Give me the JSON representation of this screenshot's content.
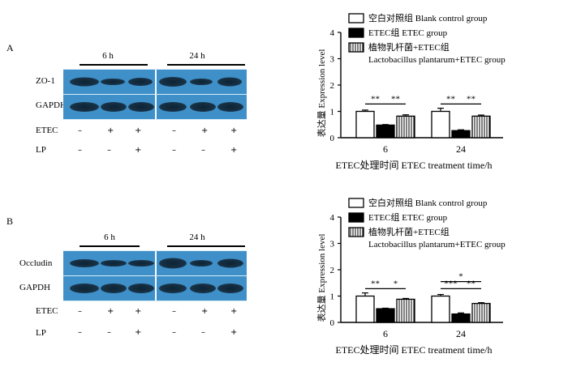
{
  "panels": [
    {
      "letter": "A",
      "time_labels": [
        "6 h",
        "24 h"
      ],
      "target_label": "ZO-1",
      "loading_label": "GAPDH",
      "treatment_rows": [
        {
          "label": "ETEC",
          "signs": [
            "–",
            "+",
            "+",
            "–",
            "+",
            "+"
          ]
        },
        {
          "label": "LP",
          "signs": [
            "–",
            "–",
            "+",
            "–",
            "–",
            "+"
          ]
        }
      ]
    },
    {
      "letter": "B",
      "time_labels": [
        "6 h",
        "24 h"
      ],
      "target_label": "Occludin",
      "loading_label": "GAPDH",
      "treatment_rows": [
        {
          "label": "ETEC",
          "signs": [
            "–",
            "+",
            "+",
            "–",
            "+",
            "+"
          ]
        },
        {
          "label": "LP",
          "signs": [
            "–",
            "–",
            "+",
            "–",
            "–",
            "+"
          ]
        }
      ]
    }
  ],
  "legend": [
    {
      "label": "空白对照组 Blank control group",
      "pattern": "white"
    },
    {
      "label": "ETEC组 ETEC group",
      "pattern": "black"
    },
    {
      "label": "植物乳杆菌+ETEC组",
      "pattern": "striped",
      "label_line2": "Lactobacillus plantarum+ETEC group"
    }
  ],
  "chart_data": [
    {
      "type": "bar",
      "categories": [
        "6",
        "24"
      ],
      "series": [
        {
          "name": "空白对照组 Blank control group",
          "values": [
            1.0,
            1.0
          ],
          "errors": [
            0.05,
            0.12
          ]
        },
        {
          "name": "ETEC组 ETEC group",
          "values": [
            0.48,
            0.27
          ],
          "errors": [
            0.02,
            0.03
          ]
        },
        {
          "name": "植物乳杆菌+ETEC组 Lactobacillus plantarum+ETEC group",
          "values": [
            0.82,
            0.82
          ],
          "errors": [
            0.05,
            0.04
          ]
        }
      ],
      "ylabel": "表达量  Expression level",
      "xlabel": "ETEC处理时间 ETEC treatment time/h",
      "yticks": [
        0,
        1,
        2,
        3,
        4
      ],
      "ylim": [
        0,
        4
      ],
      "significance": [
        {
          "group": "6",
          "from": 0,
          "to": 1,
          "label": "**"
        },
        {
          "group": "6",
          "from": 1,
          "to": 2,
          "label": "**"
        },
        {
          "group": "24",
          "from": 0,
          "to": 1,
          "label": "**"
        },
        {
          "group": "24",
          "from": 1,
          "to": 2,
          "label": "**"
        }
      ]
    },
    {
      "type": "bar",
      "categories": [
        "6",
        "24"
      ],
      "series": [
        {
          "name": "空白对照组 Blank control group",
          "values": [
            1.0,
            1.0
          ],
          "errors": [
            0.12,
            0.06
          ]
        },
        {
          "name": "ETEC组 ETEC group",
          "values": [
            0.52,
            0.32
          ],
          "errors": [
            0.02,
            0.04
          ]
        },
        {
          "name": "植物乳杆菌+ETEC组 Lactobacillus plantarum+ETEC group",
          "values": [
            0.88,
            0.72
          ],
          "errors": [
            0.03,
            0.03
          ]
        }
      ],
      "ylabel": "表达量  Expression level",
      "xlabel": "ETEC处理时间 ETEC treatment time/h",
      "yticks": [
        0,
        1,
        2,
        3,
        4
      ],
      "ylim": [
        0,
        4
      ],
      "significance": [
        {
          "group": "6",
          "from": 0,
          "to": 1,
          "label": "**"
        },
        {
          "group": "6",
          "from": 1,
          "to": 2,
          "label": "*"
        },
        {
          "group": "24",
          "from": 0,
          "to": 1,
          "label": "***"
        },
        {
          "group": "24",
          "from": 1,
          "to": 2,
          "label": "**"
        },
        {
          "group": "24",
          "from": 0,
          "to": 2,
          "label": "*"
        }
      ]
    }
  ]
}
